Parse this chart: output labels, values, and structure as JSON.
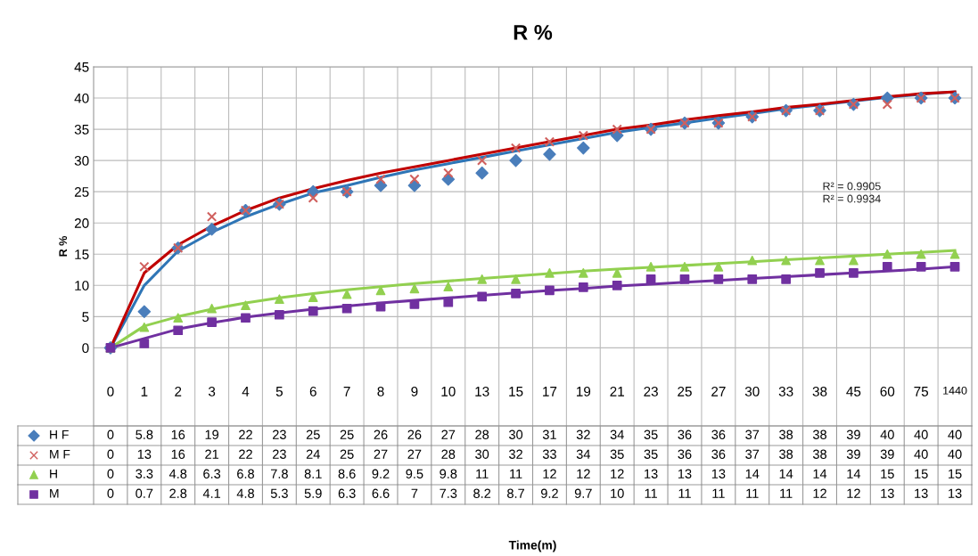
{
  "chart_data": {
    "type": "line",
    "title": "R %",
    "ylabel": "R %",
    "categories": [
      "0",
      "1",
      "2",
      "3",
      "4",
      "5",
      "6",
      "7",
      "8",
      "9",
      "10",
      "13",
      "15",
      "17",
      "19",
      "21",
      "23",
      "25",
      "27",
      "30",
      "33",
      "38",
      "45",
      "60",
      "75",
      "1440"
    ],
    "ylim": [
      -12.5,
      45
    ],
    "yticks": [
      0,
      5,
      10,
      15,
      20,
      25,
      30,
      35,
      40,
      45
    ],
    "grid": true,
    "legend": "bottom",
    "series": [
      {
        "name": "H F",
        "type": "scatter",
        "marker": "diamond",
        "color": "#4a7ebb",
        "values": [
          0,
          5.8,
          16,
          19,
          22,
          23,
          25,
          25,
          26,
          26,
          27,
          28,
          30,
          31,
          32,
          34,
          35,
          36,
          36,
          37,
          38,
          38,
          39,
          40,
          40,
          40
        ],
        "value_labels": [
          "0",
          "5.8",
          "16",
          "19",
          "22",
          "23",
          "25",
          "25",
          "26",
          "26",
          "27",
          "28",
          "30",
          "31",
          "32",
          "34",
          "35",
          "36",
          "36",
          "37",
          "38",
          "38",
          "39",
          "40",
          "40",
          "40"
        ]
      },
      {
        "name": "M F",
        "type": "scatter",
        "marker": "cross",
        "color": "#d0605e",
        "values": [
          0,
          13,
          16,
          21,
          22,
          23,
          24,
          25,
          27,
          27,
          28,
          30,
          32,
          33,
          34,
          35,
          35,
          36,
          36,
          37,
          38,
          38,
          39,
          39,
          40,
          40
        ],
        "value_labels": [
          "0",
          "13",
          "16",
          "21",
          "22",
          "23",
          "24",
          "25",
          "27",
          "27",
          "28",
          "30",
          "32",
          "33",
          "34",
          "35",
          "35",
          "36",
          "36",
          "37",
          "38",
          "38",
          "39",
          "39",
          "40",
          "40"
        ]
      },
      {
        "name": "H",
        "type": "scatter",
        "marker": "triangle",
        "color": "#92d050",
        "values": [
          0,
          3.3,
          4.8,
          6.3,
          6.8,
          7.8,
          8.1,
          8.6,
          9.2,
          9.5,
          9.8,
          11,
          11,
          12,
          12,
          12,
          13,
          13,
          13,
          14,
          14,
          14,
          14,
          15,
          15,
          15
        ],
        "value_labels": [
          "0",
          "3.3",
          "4.8",
          "6.3",
          "6.8",
          "7.8",
          "8.1",
          "8.6",
          "9.2",
          "9.5",
          "9.8",
          "11",
          "11",
          "12",
          "12",
          "12",
          "13",
          "13",
          "13",
          "14",
          "14",
          "14",
          "14",
          "15",
          "15",
          "15"
        ]
      },
      {
        "name": "M",
        "type": "scatter",
        "marker": "square",
        "color": "#7030a0",
        "values": [
          0,
          0.7,
          2.8,
          4.1,
          4.8,
          5.3,
          5.9,
          6.3,
          6.6,
          7,
          7.3,
          8.2,
          8.7,
          9.2,
          9.7,
          10,
          11,
          11,
          11,
          11,
          11,
          12,
          12,
          13,
          13,
          13
        ],
        "value_labels": [
          "0",
          "0.7",
          "2.8",
          "4.1",
          "4.8",
          "5.3",
          "5.9",
          "6.3",
          "6.6",
          "7",
          "7.3",
          "8.2",
          "8.7",
          "9.2",
          "9.7",
          "10",
          "11",
          "11",
          "11",
          "11",
          "11",
          "12",
          "12",
          "13",
          "13",
          "13"
        ]
      },
      {
        "marker": "none",
        "color": "#2e75b6",
        "values": [
          0,
          10,
          15.5,
          18.5,
          21,
          23,
          24.8,
          26,
          27.3,
          28.5,
          29.5,
          30.5,
          31.5,
          32.5,
          33.5,
          34.5,
          35.3,
          36,
          36.8,
          37.5,
          38.3,
          38.9,
          39.5,
          40.1,
          40.6,
          41
        ]
      },
      {
        "marker": "none",
        "color": "#c00000",
        "values": [
          0,
          12,
          16.5,
          19.5,
          22,
          24,
          25.5,
          26.8,
          28,
          29,
          30,
          31,
          32,
          33,
          34,
          35,
          35.7,
          36.5,
          37.2,
          37.8,
          38.5,
          39,
          39.6,
          40.2,
          40.7,
          41
        ]
      },
      {
        "marker": "none",
        "color": "#92d050",
        "values": [
          0,
          3.5,
          5,
          6.2,
          7.2,
          8,
          8.7,
          9.3,
          9.8,
          10.3,
          10.7,
          11.1,
          11.5,
          11.9,
          12.3,
          12.6,
          12.9,
          13.2,
          13.5,
          13.8,
          14.1,
          14.4,
          14.7,
          15,
          15.3,
          15.6
        ]
      },
      {
        "marker": "none",
        "color": "#7030a0",
        "values": [
          0,
          1.5,
          3,
          4,
          4.9,
          5.6,
          6.2,
          6.7,
          7.2,
          7.6,
          8,
          8.4,
          8.8,
          9.2,
          9.5,
          9.9,
          10.2,
          10.5,
          10.8,
          11.1,
          11.4,
          11.7,
          12,
          12.3,
          12.6,
          13
        ]
      }
    ],
    "annotations": [
      "R² = 0.9905",
      "R² = 0.9934",
      "Time(m)"
    ]
  }
}
